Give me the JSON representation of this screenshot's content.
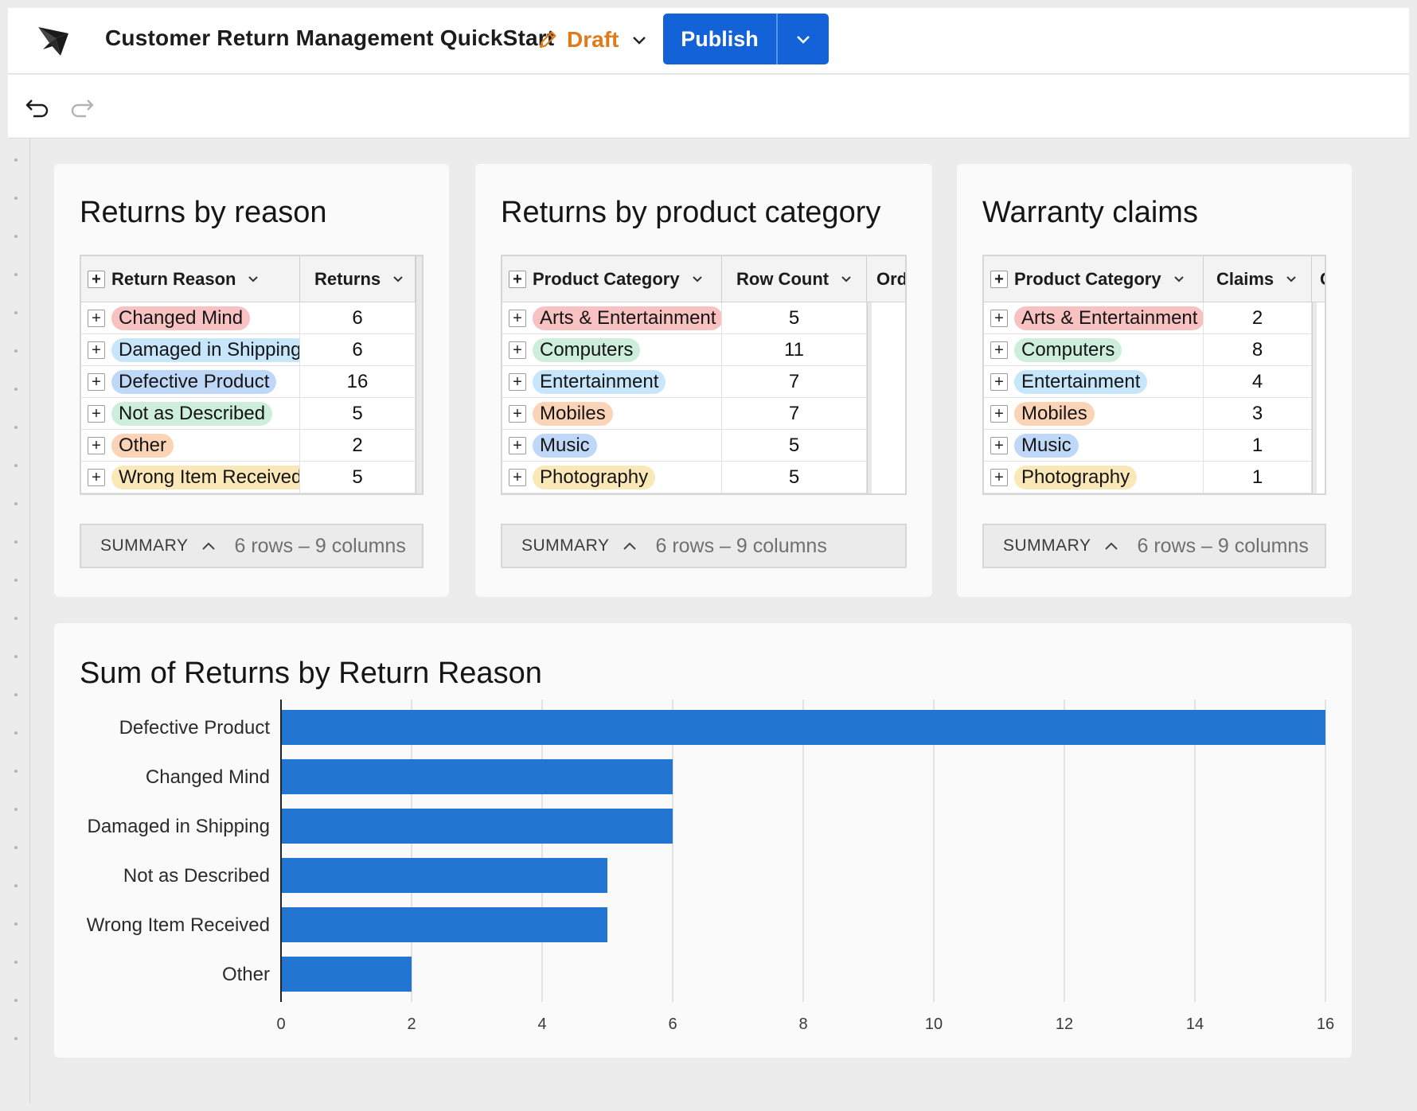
{
  "header": {
    "doc_title": "Customer Return Management QuickStart",
    "draft_label": "Draft",
    "publish_label": "Publish"
  },
  "colors": {
    "publish_blue": "#1462d8",
    "draft_orange": "#e07b1a",
    "bar_blue": "#2276d2",
    "pill_red": "#f8c2c2",
    "pill_sky": "#c7e5fb",
    "pill_blue": "#bfd8f8",
    "pill_green": "#cceedb",
    "pill_orange": "#fbd4b8",
    "pill_yellow": "#fbe8b8"
  },
  "card_reason": {
    "title": "Returns by reason",
    "columns": [
      "Return Reason",
      "Returns"
    ],
    "rows": [
      {
        "label": "Changed Mind",
        "value": "6",
        "color": "#f8c2c2"
      },
      {
        "label": "Damaged in Shipping",
        "value": "6",
        "color": "#c7e5fb"
      },
      {
        "label": "Defective Product",
        "value": "16",
        "color": "#bfd8f8"
      },
      {
        "label": "Not as Described",
        "value": "5",
        "color": "#cceedb"
      },
      {
        "label": "Other",
        "value": "2",
        "color": "#fbd4b8"
      },
      {
        "label": "Wrong Item Received",
        "value": "5",
        "color": "#fbe8b8"
      }
    ],
    "summary_label": "SUMMARY",
    "summary_info": "6 rows – 9 columns"
  },
  "card_category": {
    "title": "Returns by product category",
    "columns": [
      "Product Category",
      "Row Count",
      "Ord"
    ],
    "rows": [
      {
        "label": "Arts & Entertainment",
        "value": "5",
        "color": "#f8c2c2"
      },
      {
        "label": "Computers",
        "value": "11",
        "color": "#cceedb"
      },
      {
        "label": "Entertainment",
        "value": "7",
        "color": "#c7e5fb"
      },
      {
        "label": "Mobiles",
        "value": "7",
        "color": "#fbd4b8"
      },
      {
        "label": "Music",
        "value": "5",
        "color": "#bfd8f8"
      },
      {
        "label": "Photography",
        "value": "5",
        "color": "#fbe8b8"
      }
    ],
    "summary_label": "SUMMARY",
    "summary_info": "6 rows – 9 columns"
  },
  "card_warranty": {
    "title": "Warranty claims",
    "columns": [
      "Product Category",
      "Claims",
      "C"
    ],
    "rows": [
      {
        "label": "Arts & Entertainment",
        "value": "2",
        "color": "#f8c2c2"
      },
      {
        "label": "Computers",
        "value": "8",
        "color": "#cceedb"
      },
      {
        "label": "Entertainment",
        "value": "4",
        "color": "#c7e5fb"
      },
      {
        "label": "Mobiles",
        "value": "3",
        "color": "#fbd4b8"
      },
      {
        "label": "Music",
        "value": "1",
        "color": "#bfd8f8"
      },
      {
        "label": "Photography",
        "value": "1",
        "color": "#fbe8b8"
      }
    ],
    "summary_label": "SUMMARY",
    "summary_info": "6 rows – 9 columns"
  },
  "chart_data": {
    "type": "bar",
    "orientation": "horizontal",
    "title": "Sum of Returns by Return Reason",
    "categories": [
      "Defective Product",
      "Changed Mind",
      "Damaged in Shipping",
      "Not as Described",
      "Wrong Item Received",
      "Other"
    ],
    "values": [
      16,
      6,
      6,
      5,
      5,
      2
    ],
    "xlim": [
      0,
      16
    ],
    "xticks": [
      0,
      2,
      4,
      6,
      8,
      10,
      12,
      14,
      16
    ],
    "grid": true,
    "color": "#2276d2"
  }
}
